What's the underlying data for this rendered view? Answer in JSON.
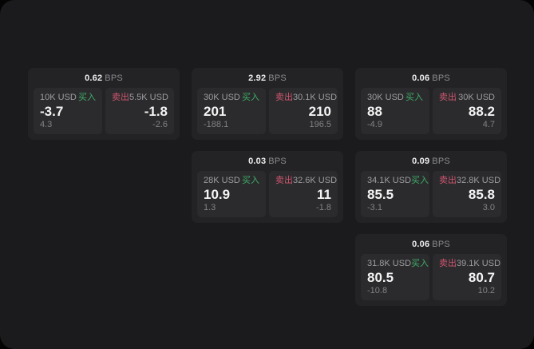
{
  "colors": {
    "buy_accent": "#3fae68",
    "sell_accent": "#cf5670",
    "panel_background": "#1b1b1d",
    "card_background": "#232325",
    "quote_background": "#2b2b2d"
  },
  "cards": [
    {
      "bps": {
        "value": "0.62",
        "unit": "BPS"
      },
      "buy": {
        "amount": "10K USD",
        "side_label": "买入",
        "price": "-3.7",
        "change": "4.3"
      },
      "sell": {
        "side_label": "卖出",
        "amount": "5.5K USD",
        "price": "-1.8",
        "change": "-2.6"
      }
    },
    {
      "bps": {
        "value": "2.92",
        "unit": "BPS"
      },
      "buy": {
        "amount": "30K USD",
        "side_label": "买入",
        "price": "201",
        "change": "-188.1"
      },
      "sell": {
        "side_label": "卖出",
        "amount": "30.1K USD",
        "price": "210",
        "change": "196.5"
      }
    },
    {
      "bps": {
        "value": "0.06",
        "unit": "BPS"
      },
      "buy": {
        "amount": "30K USD",
        "side_label": "买入",
        "price": "88",
        "change": "-4.9"
      },
      "sell": {
        "side_label": "卖出",
        "amount": "30K USD",
        "price": "88.2",
        "change": "4.7"
      }
    },
    {
      "bps": {
        "value": "0.03",
        "unit": "BPS"
      },
      "buy": {
        "amount": "28K USD",
        "side_label": "买入",
        "price": "10.9",
        "change": "1.3"
      },
      "sell": {
        "side_label": "卖出",
        "amount": "32.6K USD",
        "price": "11",
        "change": "-1.8"
      }
    },
    {
      "bps": {
        "value": "0.09",
        "unit": "BPS"
      },
      "buy": {
        "amount": "34.1K USD",
        "side_label": "买入",
        "price": "85.5",
        "change": "-3.1"
      },
      "sell": {
        "side_label": "卖出",
        "amount": "32.8K USD",
        "price": "85.8",
        "change": "3.0"
      }
    },
    {
      "bps": {
        "value": "0.06",
        "unit": "BPS"
      },
      "buy": {
        "amount": "31.8K USD",
        "side_label": "买入",
        "price": "80.5",
        "change": "-10.8"
      },
      "sell": {
        "side_label": "卖出",
        "amount": "39.1K USD",
        "price": "80.7",
        "change": "10.2"
      }
    }
  ]
}
